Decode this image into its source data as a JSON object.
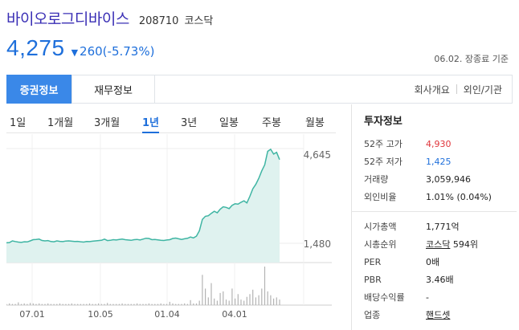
{
  "stock": {
    "name": "바이오로그디바이스",
    "code": "208710",
    "market": "코스닥",
    "price": "4,275",
    "change": "260(-5.73%)",
    "date_note": "06.02. 장종료 기준"
  },
  "tabs": {
    "active": "증권정보",
    "second": "재무정보",
    "company": "회사개요",
    "investor": "외인/기관"
  },
  "periods": [
    "1일",
    "1개월",
    "3개월",
    "1년",
    "3년",
    "일봉",
    "주봉",
    "월봉"
  ],
  "active_period": "1년",
  "chart_data": {
    "type": "area",
    "y_max_label": "4,645",
    "y_min_label": "1,480",
    "x_ticks": [
      "07.01",
      "10.05",
      "01.04",
      "04.01"
    ],
    "price_range": [
      1480,
      4645
    ],
    "values": [
      1495,
      1505,
      1560,
      1540,
      1520,
      1510,
      1530,
      1525,
      1560,
      1600,
      1610,
      1620,
      1575,
      1560,
      1570,
      1540,
      1530,
      1560,
      1545,
      1535,
      1555,
      1560,
      1550,
      1540,
      1545,
      1530,
      1520,
      1540,
      1535,
      1550,
      1560,
      1570,
      1580,
      1620,
      1570,
      1580,
      1600,
      1590,
      1605,
      1620,
      1600,
      1590,
      1580,
      1600,
      1610,
      1590,
      1620,
      1650,
      1640,
      1600,
      1610,
      1595,
      1580,
      1575,
      1590,
      1600,
      1640,
      1655,
      1630,
      1610,
      1630,
      1645,
      1690,
      1660,
      1720,
      1900,
      2280,
      2380,
      2400,
      2480,
      2550,
      2500,
      2620,
      2700,
      2680,
      2640,
      2750,
      2800,
      2790,
      2850,
      2900,
      2830,
      3050,
      3300,
      3450,
      3650,
      3900,
      4100,
      4550,
      4620,
      4460,
      4520,
      4275
    ],
    "volume": [
      2,
      3,
      2,
      2,
      5,
      2,
      3,
      2,
      4,
      3,
      2,
      3,
      2,
      2,
      3,
      2,
      2,
      2,
      3,
      2,
      2,
      2,
      3,
      2,
      2,
      2,
      2,
      2,
      3,
      2,
      2,
      3,
      2,
      2,
      4,
      2,
      2,
      2,
      2,
      3,
      2,
      2,
      2,
      2,
      3,
      2,
      2,
      2,
      3,
      2,
      2,
      2,
      3,
      2,
      2,
      6,
      3,
      2,
      2,
      2,
      3,
      2,
      9,
      3,
      3,
      8,
      55,
      30,
      14,
      40,
      12,
      8,
      22,
      25,
      10,
      8,
      30,
      12,
      20,
      10,
      8,
      15,
      20,
      28,
      14,
      18,
      30,
      70,
      25,
      18,
      12,
      14,
      10
    ]
  },
  "info": {
    "heading": "투자정보",
    "rows1": [
      {
        "label": "52주 고가",
        "value": "4,930",
        "color": "#e0353b"
      },
      {
        "label": "52주 저가",
        "value": "1,425",
        "color": "#1e6fdb"
      },
      {
        "label": "거래량",
        "value": "3,059,946"
      },
      {
        "label": "외인비율",
        "value": "1.01% (0.04%)"
      }
    ],
    "market_cap_label": "시가총액",
    "market_cap_value": "1,771억",
    "rank_label": "시총순위",
    "rank_market": "코스닥",
    "rank_value": "594위",
    "per_label": "PER",
    "per_value": "0배",
    "pbr_label": "PBR",
    "pbr_value": "3.46배",
    "dividend_label": "배당수익률",
    "dividend_value": "-",
    "sector_label": "업종",
    "sector_value": "핸드셋"
  }
}
